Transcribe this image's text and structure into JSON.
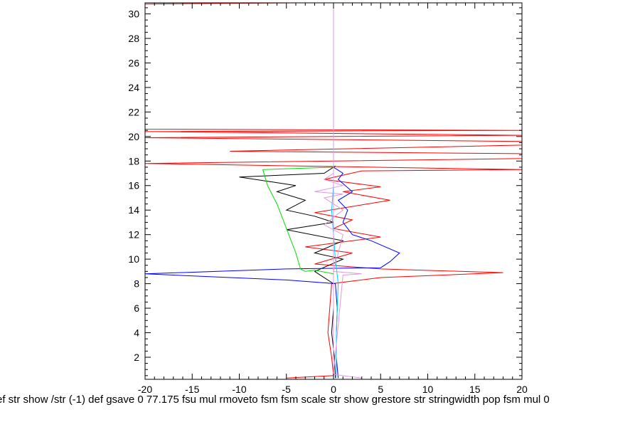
{
  "chart_data": {
    "type": "line",
    "title": "",
    "xlabel": "",
    "ylabel": "",
    "xlim": [
      -20,
      20
    ],
    "ylim": [
      0.2,
      30.9
    ],
    "x_ticks": [
      -20,
      -15,
      -10,
      -5,
      0,
      5,
      10,
      15,
      20
    ],
    "y_ticks": [
      2,
      4,
      6,
      8,
      10,
      12,
      14,
      16,
      18,
      20,
      22,
      24,
      26,
      28,
      30
    ],
    "grid": false,
    "legend": "none",
    "x_axis_text": "ef str show /str (-1) def gsave 0 77.175 fsu mul rmoveto fsm fsm scale str show grestore str stringwidth pop fsm mul 0",
    "series": [
      {
        "color": "#ff0000",
        "points": [
          [
            -5,
            0.3
          ],
          [
            0,
            0.5
          ],
          [
            -0.2,
            2
          ],
          [
            -0.6,
            4
          ],
          [
            -0.4,
            6
          ],
          [
            -0.2,
            8
          ],
          [
            5,
            8.5
          ],
          [
            18,
            8.9
          ],
          [
            5,
            9.2
          ],
          [
            -2,
            9.6
          ],
          [
            2,
            10.5
          ],
          [
            -3,
            11
          ],
          [
            5,
            11.8
          ],
          [
            0,
            12.5
          ],
          [
            2,
            13.2
          ],
          [
            -2,
            13.8
          ],
          [
            6,
            14.8
          ],
          [
            1,
            15.5
          ],
          [
            5,
            15.9
          ],
          [
            -1,
            16.5
          ],
          [
            3,
            17.2
          ],
          [
            20,
            17.3
          ],
          [
            -20,
            17.8
          ],
          [
            20,
            18.2
          ],
          [
            20,
            18.6
          ],
          [
            -11,
            18.8
          ],
          [
            20,
            19.3
          ],
          [
            20,
            19.6
          ],
          [
            -20,
            19.9
          ],
          [
            20,
            20.1
          ],
          [
            -20,
            20.4
          ],
          [
            20,
            20.5
          ],
          [
            -20,
            20.6
          ],
          [
            -20,
            30.8
          ],
          [
            -4,
            30.9
          ]
        ]
      },
      {
        "color": "#000000",
        "points": [
          [
            0.2,
            0.3
          ],
          [
            0.1,
            2
          ],
          [
            -0.2,
            4
          ],
          [
            0,
            6
          ],
          [
            0,
            8
          ],
          [
            -2,
            9
          ],
          [
            1,
            10
          ],
          [
            -2,
            10.5
          ],
          [
            1,
            11.5
          ],
          [
            -5,
            12.4
          ],
          [
            0,
            13
          ],
          [
            -2,
            13.5
          ],
          [
            -5,
            14
          ],
          [
            -3,
            14.8
          ],
          [
            -6,
            15.5
          ],
          [
            -4,
            16
          ],
          [
            -10,
            16.7
          ],
          [
            -1,
            17
          ],
          [
            0.2,
            17.6
          ]
        ]
      },
      {
        "color": "#0000ff",
        "points": [
          [
            0.5,
            0.3
          ],
          [
            0.3,
            2
          ],
          [
            0.3,
            4
          ],
          [
            0.4,
            6
          ],
          [
            0.2,
            8
          ],
          [
            -5,
            8.3
          ],
          [
            -20,
            8.8
          ],
          [
            -5,
            9.2
          ],
          [
            5,
            9.3
          ],
          [
            6,
            9.8
          ],
          [
            7,
            10.5
          ],
          [
            4,
            11.5
          ],
          [
            2,
            12
          ],
          [
            1,
            13
          ],
          [
            1.5,
            14
          ],
          [
            0.5,
            14.8
          ],
          [
            2,
            15.5
          ],
          [
            0.5,
            16.5
          ],
          [
            1,
            17
          ],
          [
            0,
            17.5
          ]
        ]
      },
      {
        "color": "#00dd00",
        "points": [
          [
            0,
            8.8
          ],
          [
            -2,
            9.1
          ],
          [
            -3,
            9
          ],
          [
            -3.5,
            9.2
          ],
          [
            -4,
            10.5
          ],
          [
            -5,
            12.5
          ],
          [
            -6,
            14.5
          ],
          [
            -7,
            16
          ],
          [
            -7.5,
            17.3
          ],
          [
            0,
            17.5
          ]
        ]
      },
      {
        "color": "#00ccff",
        "points": [
          [
            0.3,
            0.3
          ],
          [
            0.3,
            4
          ],
          [
            0.5,
            8
          ],
          [
            0.2,
            10
          ],
          [
            0,
            12
          ],
          [
            -0.2,
            14
          ],
          [
            0,
            16
          ],
          [
            0,
            17.5
          ],
          [
            0,
            19.5
          ]
        ]
      },
      {
        "color": "#dd99dd",
        "points": [
          [
            0,
            0.3
          ],
          [
            0,
            30.9
          ]
        ]
      },
      {
        "color": "#dd99dd",
        "points": [
          [
            3,
            0.3
          ],
          [
            0,
            0.6
          ],
          [
            1,
            8.7
          ],
          [
            3,
            8.8
          ],
          [
            0,
            9
          ],
          [
            1,
            12
          ],
          [
            -1,
            12.8
          ],
          [
            1,
            14
          ],
          [
            -1,
            15
          ],
          [
            1,
            15.3
          ],
          [
            -2,
            15.5
          ],
          [
            1,
            16
          ],
          [
            -1,
            16.5
          ],
          [
            0,
            17
          ]
        ]
      }
    ]
  }
}
